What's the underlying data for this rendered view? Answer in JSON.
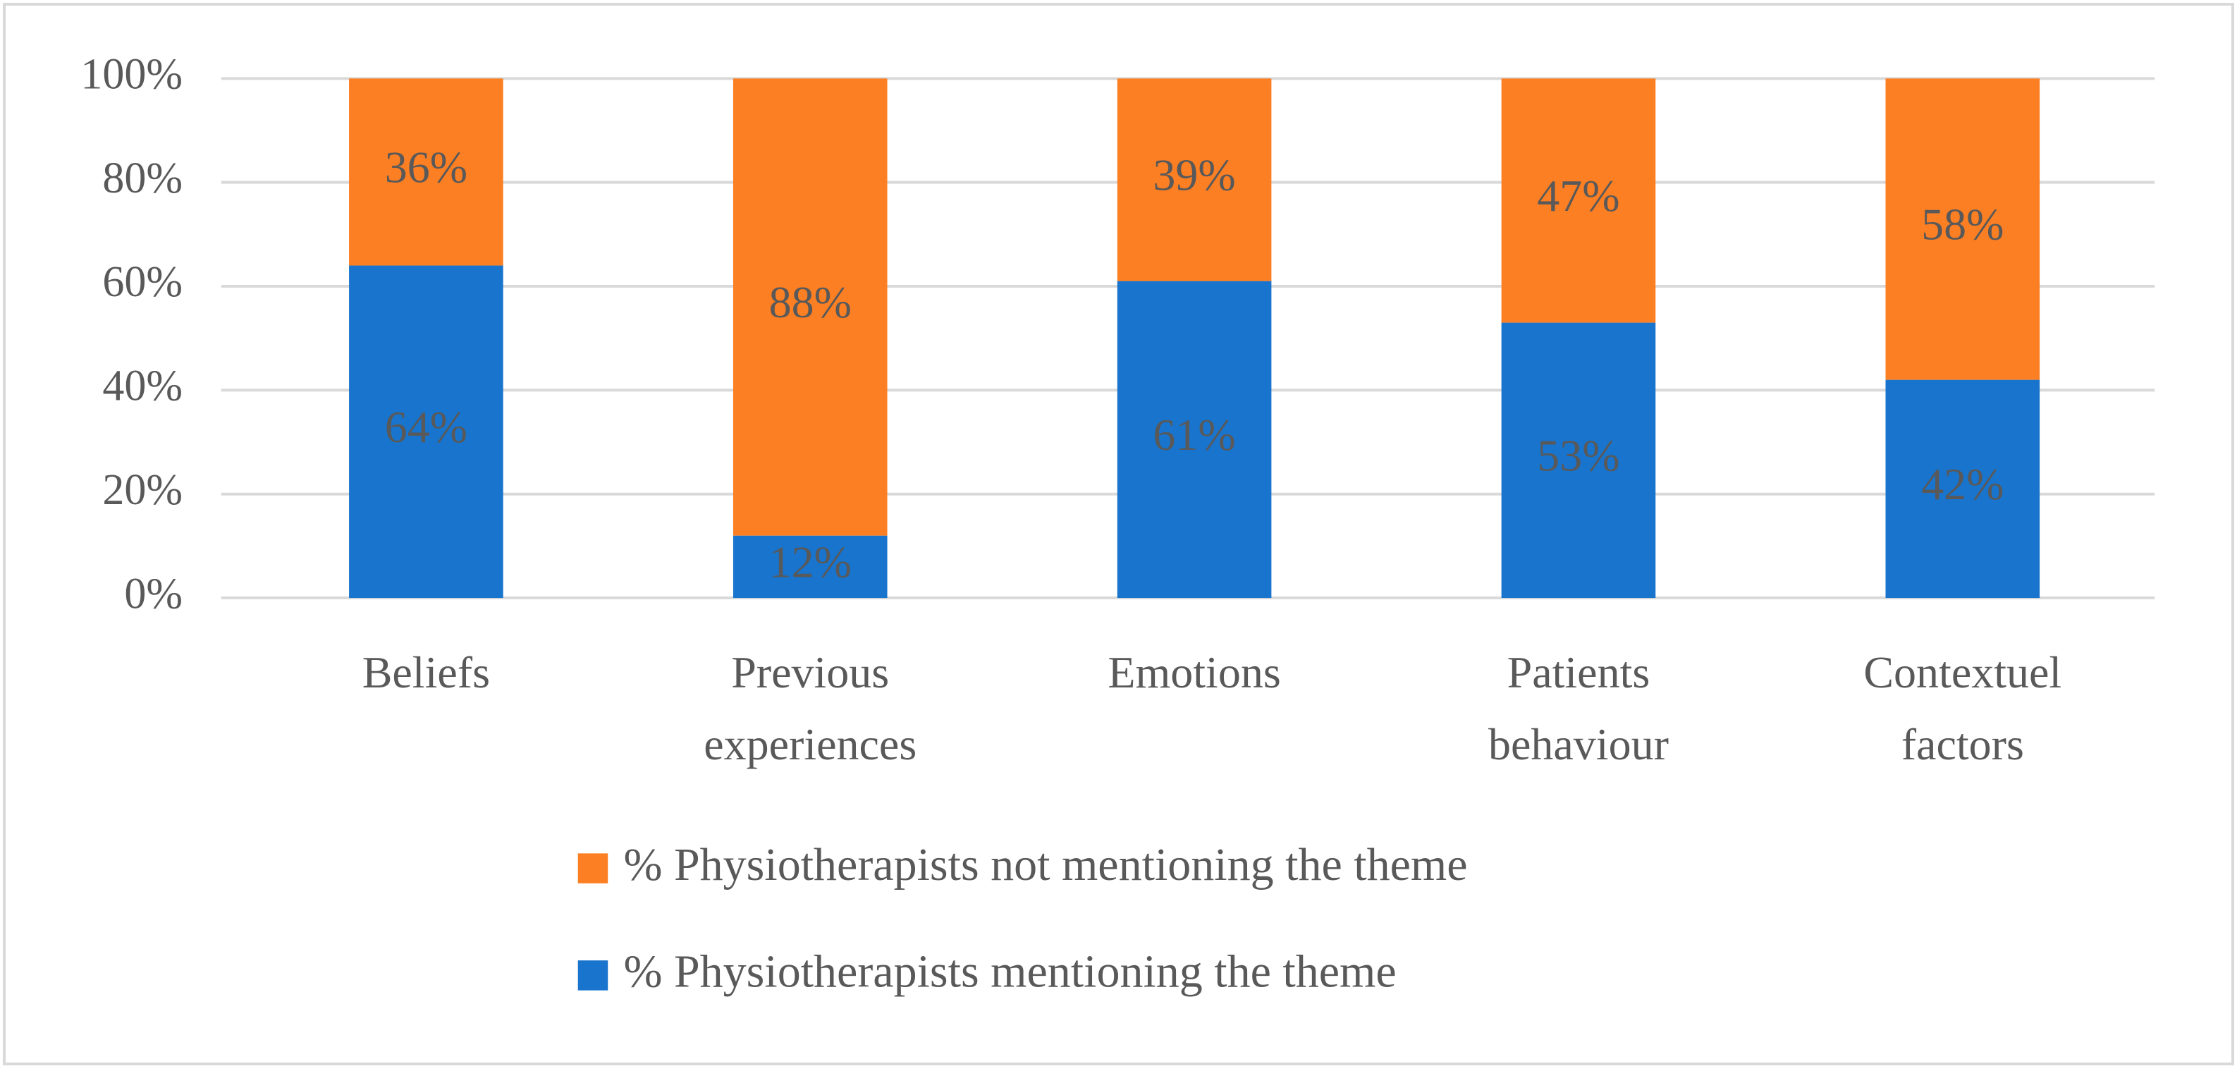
{
  "chart_data": {
    "type": "stacked_bar",
    "categories": [
      "Beliefs",
      "Previous experiences",
      "Emotions",
      "Patients behaviour",
      "Contextuel factors"
    ],
    "series": [
      {
        "name": "% Physiotherapists mentioning the theme",
        "color": "#1874cd",
        "values": [
          64,
          12,
          61,
          53,
          42
        ],
        "value_labels": [
          "64%",
          "12%",
          "61%",
          "53%",
          "42%"
        ]
      },
      {
        "name": "% Physiotherapists not mentioning the theme",
        "color": "#fd7f23",
        "values": [
          36,
          88,
          39,
          47,
          58
        ],
        "value_labels": [
          "36%",
          "88%",
          "39%",
          "47%",
          "58%"
        ]
      }
    ],
    "ylim": [
      0,
      100
    ],
    "yticks": [
      {
        "value": 0,
        "label": "0%"
      },
      {
        "value": 20,
        "label": "20%"
      },
      {
        "value": 40,
        "label": "40%"
      },
      {
        "value": 60,
        "label": "60%"
      },
      {
        "value": 80,
        "label": "80%"
      },
      {
        "value": 100,
        "label": "100%"
      }
    ],
    "grid": true,
    "legend": "bottom"
  }
}
